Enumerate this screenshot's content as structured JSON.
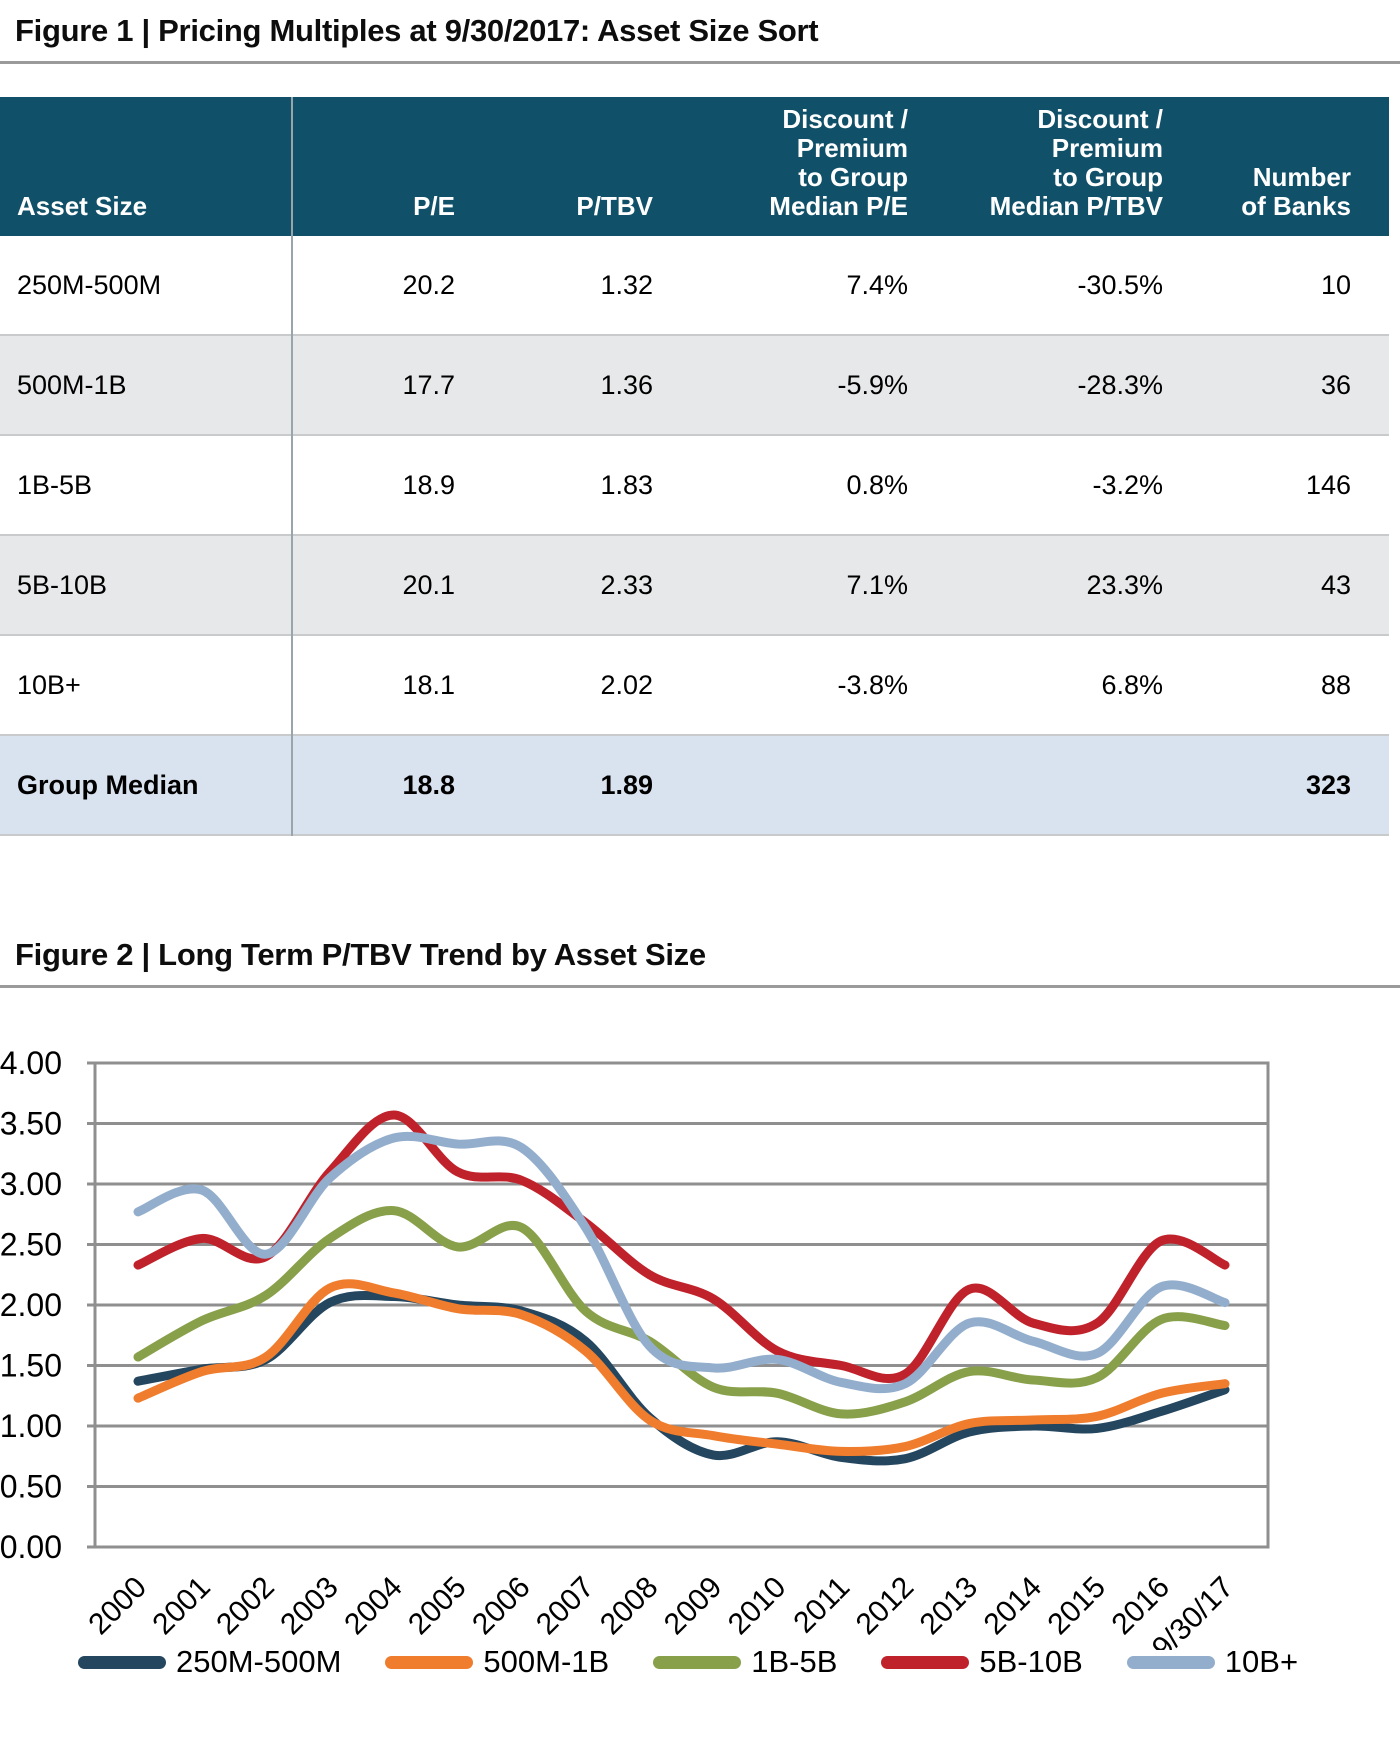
{
  "figure1": {
    "title": "Figure 1 | Pricing Multiples at 9/30/2017: Asset Size Sort",
    "table": {
      "columns": [
        "Asset Size",
        "P/E",
        "P/TBV",
        "Discount /\nPremium\nto Group\nMedian P/E",
        "Discount /\nPremium\nto Group\nMedian P/TBV",
        "Number\nof Banks"
      ],
      "rows": [
        {
          "asset_size": "250M-500M",
          "pe": "20.2",
          "ptbv": "1.32",
          "disc_pe": "7.4%",
          "disc_ptbv": "-30.5%",
          "banks": "10",
          "is_total": false
        },
        {
          "asset_size": "500M-1B",
          "pe": "17.7",
          "ptbv": "1.36",
          "disc_pe": "-5.9%",
          "disc_ptbv": "-28.3%",
          "banks": "36",
          "is_total": false
        },
        {
          "asset_size": "1B-5B",
          "pe": "18.9",
          "ptbv": "1.83",
          "disc_pe": "0.8%",
          "disc_ptbv": "-3.2%",
          "banks": "146",
          "is_total": false
        },
        {
          "asset_size": "5B-10B",
          "pe": "20.1",
          "ptbv": "2.33",
          "disc_pe": "7.1%",
          "disc_ptbv": "23.3%",
          "banks": "43",
          "is_total": false
        },
        {
          "asset_size": "10B+",
          "pe": "18.1",
          "ptbv": "2.02",
          "disc_pe": "-3.8%",
          "disc_ptbv": "6.8%",
          "banks": "88",
          "is_total": false
        },
        {
          "asset_size": "Group Median",
          "pe": "18.8",
          "ptbv": "1.89",
          "disc_pe": "",
          "disc_ptbv": "",
          "banks": "323",
          "is_total": true
        }
      ]
    },
    "colors": {
      "header_bg": "#115069",
      "alt_row_bg": "#e7e8e9",
      "total_row_bg": "#d9e3ef"
    }
  },
  "figure2": {
    "title": "Figure 2 | Long Term P/TBV Trend by Asset Size",
    "chart_data": {
      "type": "line",
      "title": "Long Term P/TBV Trend by Asset Size",
      "xlabel": "",
      "ylabel": "",
      "ylim": [
        0,
        4
      ],
      "ytick_step": 0.5,
      "grid": "horizontal",
      "legend_position": "bottom",
      "x": [
        "2000",
        "2001",
        "2002",
        "2003",
        "2004",
        "2005",
        "2006",
        "2007",
        "2008",
        "2009",
        "2010",
        "2011",
        "2012",
        "2013",
        "2014",
        "2015",
        "2016",
        "9/30/17"
      ],
      "series": [
        {
          "name": "250M-500M",
          "color": "#24465f",
          "values": [
            1.37,
            1.47,
            1.55,
            2.02,
            2.07,
            2.0,
            1.95,
            1.7,
            1.07,
            0.76,
            0.87,
            0.74,
            0.73,
            0.95,
            1.0,
            0.98,
            1.12,
            1.3
          ]
        },
        {
          "name": "500M-1B",
          "color": "#ef7d2d",
          "values": [
            1.23,
            1.45,
            1.57,
            2.14,
            2.1,
            1.97,
            1.92,
            1.62,
            1.05,
            0.92,
            0.85,
            0.79,
            0.83,
            1.02,
            1.05,
            1.08,
            1.27,
            1.35
          ]
        },
        {
          "name": "1B-5B",
          "color": "#89a04b",
          "values": [
            1.57,
            1.87,
            2.08,
            2.55,
            2.78,
            2.48,
            2.64,
            1.95,
            1.7,
            1.32,
            1.27,
            1.1,
            1.2,
            1.45,
            1.38,
            1.4,
            1.88,
            1.83
          ]
        },
        {
          "name": "5B-10B",
          "color": "#c0222b",
          "values": [
            2.33,
            2.55,
            2.4,
            3.1,
            3.57,
            3.1,
            3.03,
            2.68,
            2.25,
            2.05,
            1.62,
            1.5,
            1.43,
            2.13,
            1.85,
            1.85,
            2.53,
            2.33
          ]
        },
        {
          "name": "10B+",
          "color": "#93aecc",
          "values": [
            2.77,
            2.95,
            2.42,
            3.05,
            3.38,
            3.33,
            3.3,
            2.64,
            1.66,
            1.48,
            1.55,
            1.36,
            1.35,
            1.85,
            1.7,
            1.6,
            2.15,
            2.02
          ]
        }
      ]
    }
  }
}
